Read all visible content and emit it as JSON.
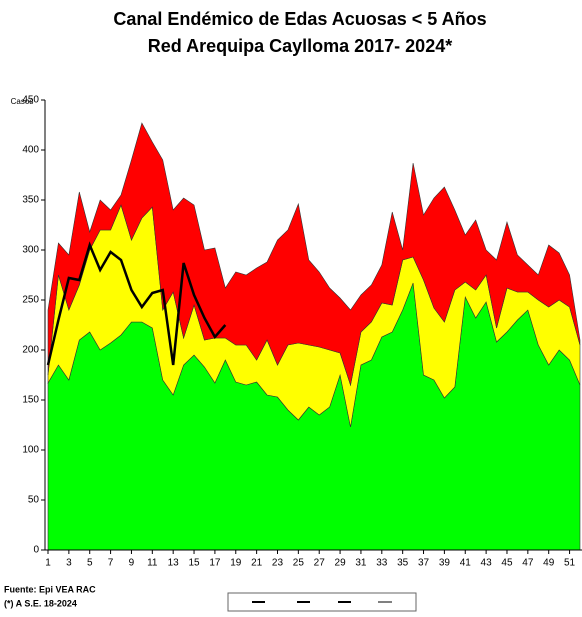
{
  "chart_data": {
    "type": "area",
    "title": "Canal Endémico de Edas Acuosas  < 5 Años",
    "subtitle": "Red Arequipa Caylloma 2017- 2024*",
    "y_label": "Casos",
    "source": "Fuente: Epi VEA RAC",
    "note": "(*) A S.E. 18-2024",
    "x": [
      1,
      2,
      3,
      4,
      5,
      6,
      7,
      8,
      9,
      10,
      11,
      12,
      13,
      14,
      15,
      16,
      17,
      18,
      19,
      20,
      21,
      22,
      23,
      24,
      25,
      26,
      27,
      28,
      29,
      30,
      31,
      32,
      33,
      34,
      35,
      36,
      37,
      38,
      39,
      40,
      41,
      42,
      43,
      44,
      45,
      46,
      47,
      48,
      49,
      50,
      51,
      52
    ],
    "xlim": [
      1,
      52
    ],
    "xticks": [
      1,
      3,
      5,
      7,
      9,
      11,
      13,
      15,
      17,
      19,
      21,
      23,
      25,
      27,
      29,
      31,
      33,
      35,
      37,
      39,
      41,
      43,
      45,
      47,
      49,
      51
    ],
    "ylim": [
      0,
      450
    ],
    "yticks": [
      0,
      50,
      100,
      150,
      200,
      250,
      300,
      350,
      400,
      450
    ],
    "series": [
      {
        "color": "#00ff00",
        "values": [
          167,
          185,
          170,
          210,
          218,
          200,
          207,
          215,
          228,
          228,
          222,
          170,
          155,
          185,
          195,
          183,
          167,
          190,
          168,
          165,
          168,
          155,
          153,
          140,
          130,
          143,
          135,
          143,
          175,
          123,
          185,
          190,
          213,
          218,
          240,
          267,
          175,
          170,
          152,
          163,
          253,
          232,
          248,
          208,
          218,
          230,
          240,
          205,
          185,
          200,
          190,
          165
        ]
      },
      {
        "color": "#ffff00",
        "values": [
          175,
          275,
          240,
          265,
          300,
          320,
          320,
          345,
          310,
          332,
          343,
          240,
          258,
          212,
          245,
          210,
          212,
          212,
          205,
          205,
          190,
          210,
          185,
          205,
          207,
          205,
          203,
          200,
          197,
          165,
          218,
          228,
          247,
          245,
          290,
          293,
          270,
          242,
          228,
          260,
          268,
          260,
          275,
          222,
          262,
          258,
          258,
          250,
          243,
          250,
          243,
          205
        ]
      },
      {
        "color": "#ff0000",
        "values": [
          240,
          307,
          295,
          358,
          318,
          350,
          340,
          355,
          390,
          427,
          408,
          390,
          340,
          352,
          345,
          300,
          302,
          262,
          278,
          275,
          282,
          288,
          310,
          320,
          346,
          290,
          278,
          262,
          252,
          240,
          255,
          265,
          285,
          338,
          300,
          387,
          335,
          352,
          363,
          340,
          315,
          330,
          300,
          290,
          328,
          295,
          285,
          275,
          305,
          297,
          275,
          210
        ]
      },
      {
        "color": "#000000",
        "type": "line",
        "values": [
          185,
          230,
          272,
          270,
          305,
          280,
          298,
          290,
          260,
          243,
          257,
          260,
          185,
          287,
          255,
          232,
          213,
          225,
          null,
          null,
          null,
          null,
          null,
          null,
          null,
          null,
          null,
          null,
          null,
          null,
          null,
          null,
          null,
          null,
          null,
          null,
          null,
          null,
          null,
          null,
          null,
          null,
          null,
          null,
          null,
          null,
          null,
          null,
          null,
          null,
          null,
          null
        ]
      }
    ]
  }
}
